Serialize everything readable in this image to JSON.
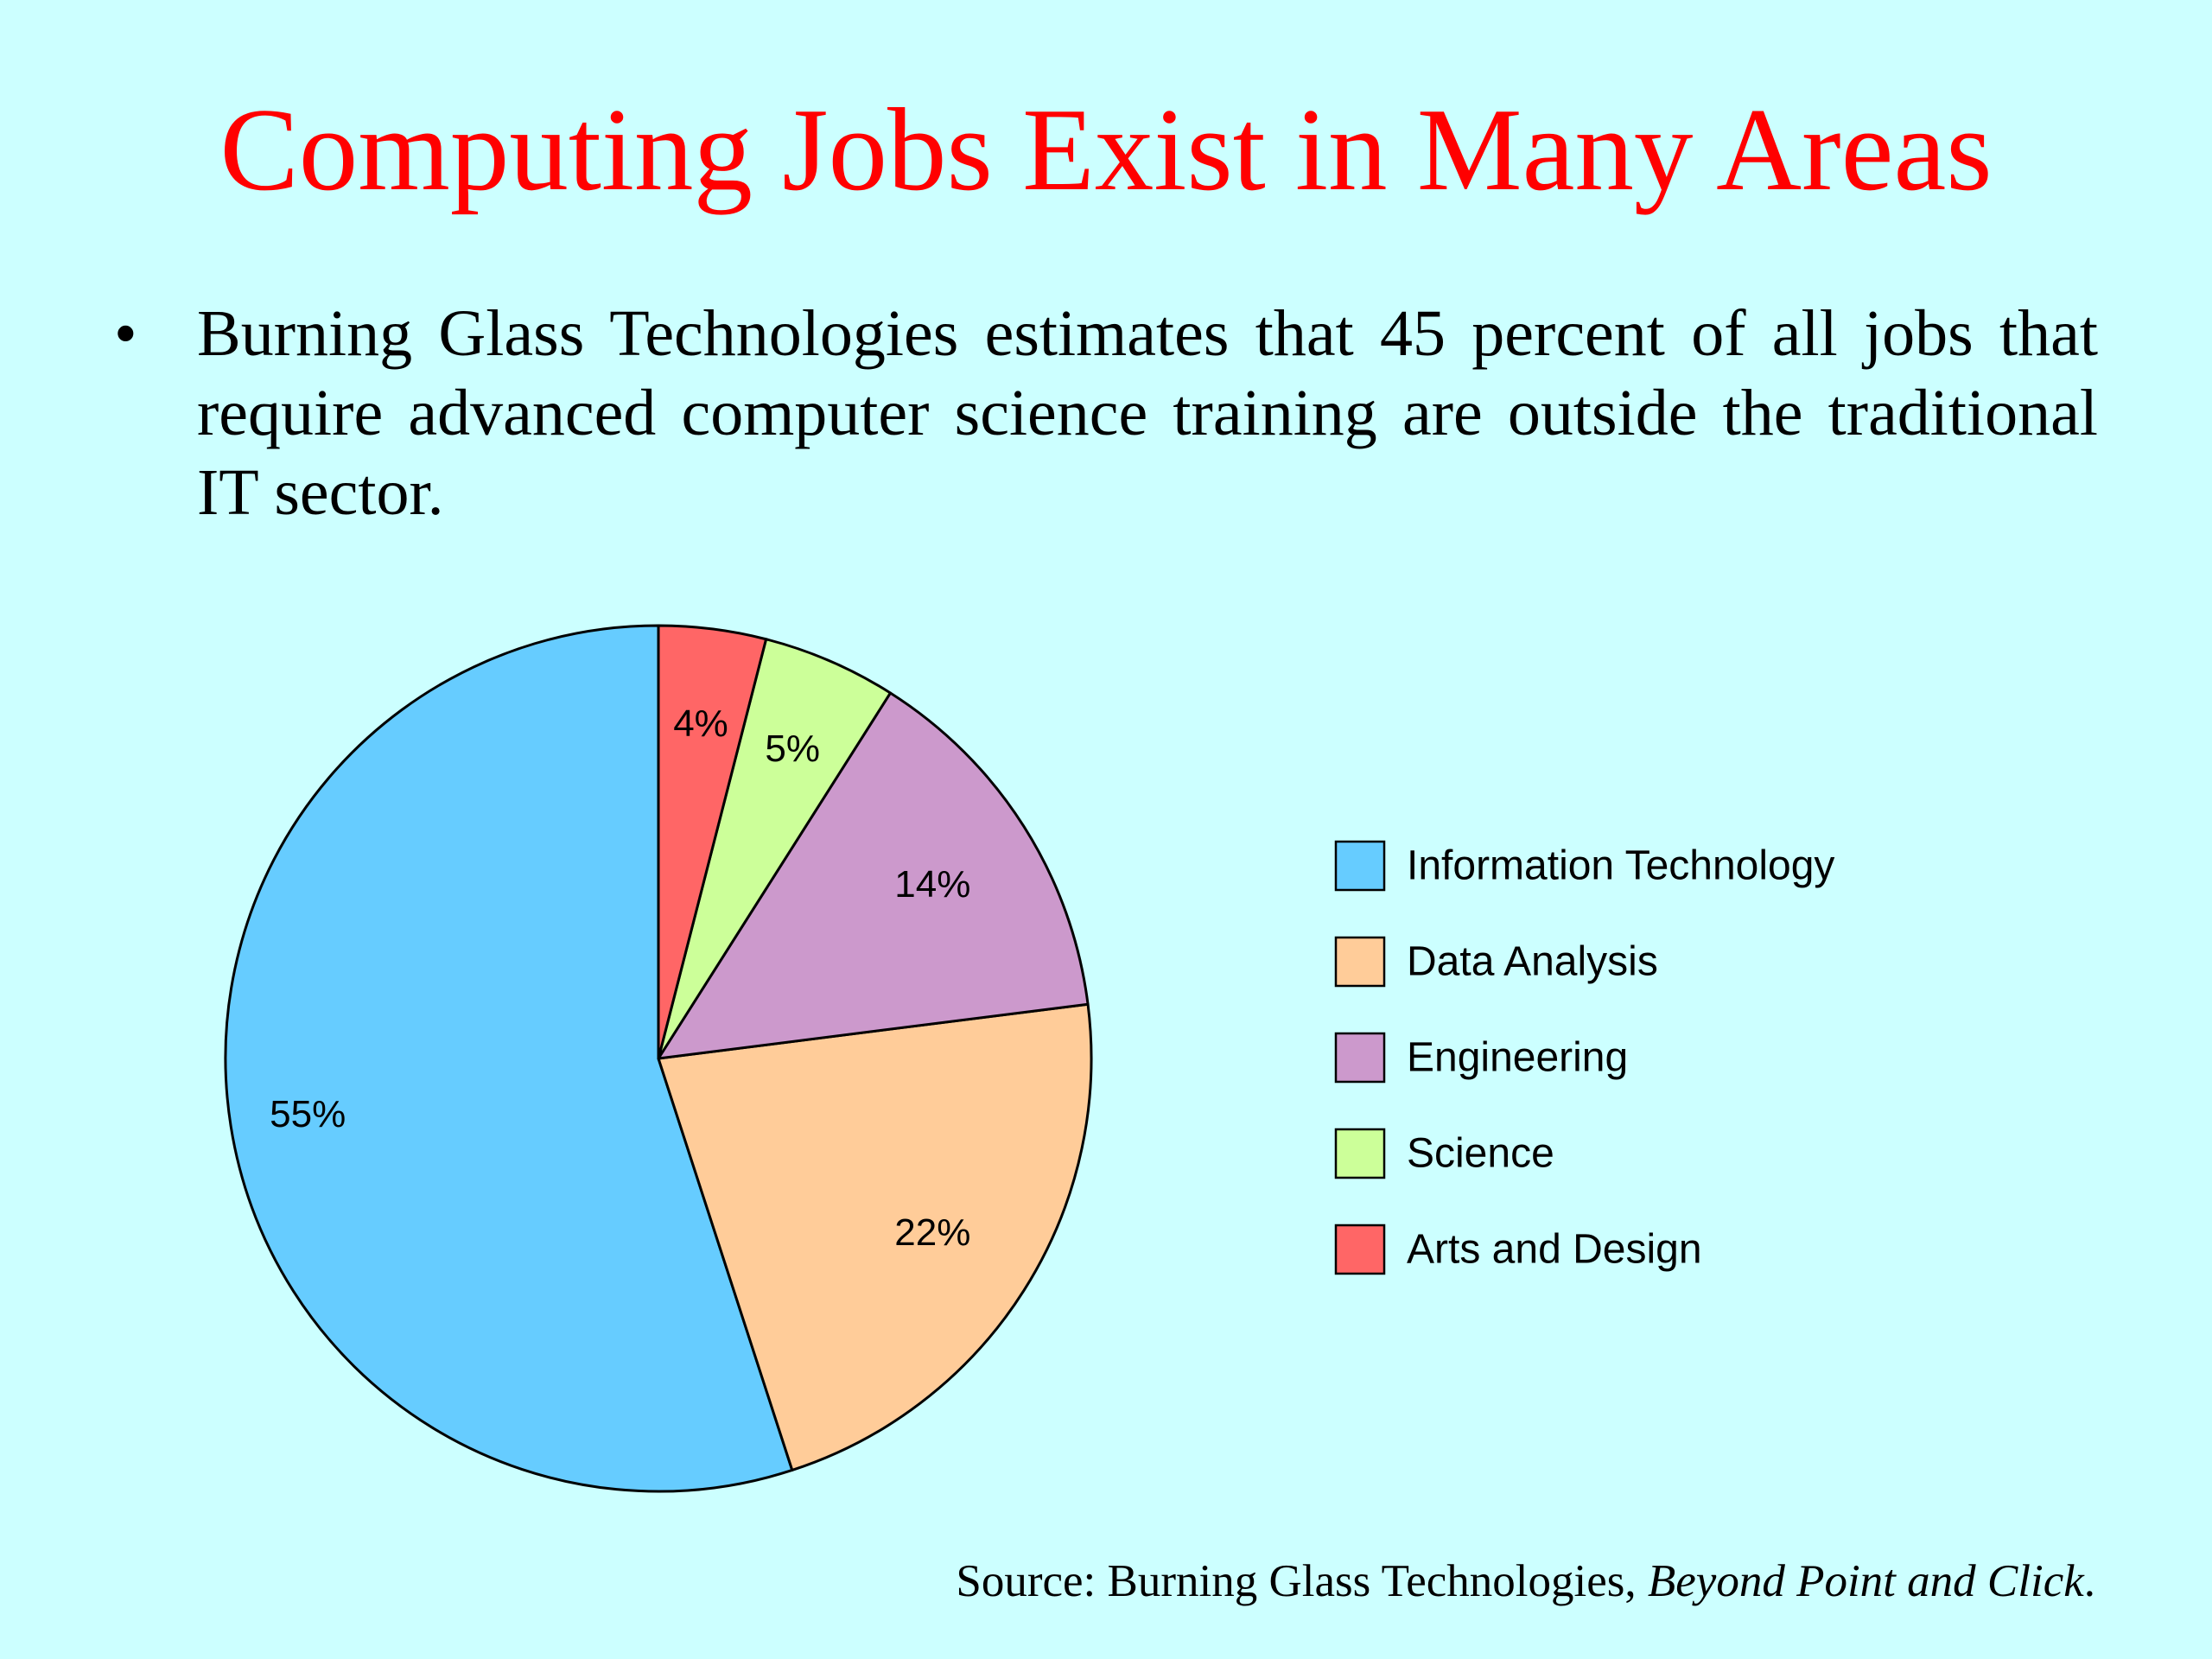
{
  "slide": {
    "title": "Computing Jobs Exist in Many Areas",
    "bullet": "Burning Glass Technologies estimates that 45 percent of all jobs that require advanced computer science training are outside the traditional IT sector.",
    "bullet_symbol": "•",
    "source_prefix": "Source: Burning Glass Technologies, ",
    "source_title": "Beyond Point and Click",
    "source_suffix": "."
  },
  "chart_data": {
    "type": "pie",
    "title": "",
    "start_angle": "12 o'clock",
    "direction": "counterclockwise",
    "legend_position": "right",
    "slices": [
      {
        "name": "Information Technology",
        "value": 55,
        "label": "55%",
        "color": "#66ccff"
      },
      {
        "name": "Data Analysis",
        "value": 22,
        "label": "22%",
        "color": "#ffcc99"
      },
      {
        "name": "Engineering",
        "value": 14,
        "label": "14%",
        "color": "#cc99cc"
      },
      {
        "name": "Science",
        "value": 5,
        "label": "5%",
        "color": "#ccff99"
      },
      {
        "name": "Arts and Design",
        "value": 4,
        "label": "4%",
        "color": "#ff6666"
      }
    ]
  }
}
